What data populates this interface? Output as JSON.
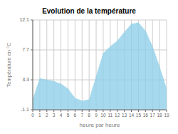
{
  "chart_data": {
    "type": "area",
    "title": "Evolution de la température",
    "x_label": "heure par heure",
    "y_label": "Température en °C",
    "x": [
      0,
      1,
      2,
      3,
      4,
      5,
      6,
      7,
      8,
      9,
      10,
      11,
      12,
      13,
      14,
      15,
      16,
      17,
      18,
      19
    ],
    "values": [
      0.4,
      3.5,
      3.3,
      3.1,
      2.7,
      2.0,
      0.6,
      0.2,
      0.4,
      3.8,
      7.2,
      8.2,
      9.0,
      10.3,
      11.5,
      11.7,
      10.5,
      8.2,
      5.2,
      2.0
    ],
    "color": "#90d0e8",
    "line_style": "dotted",
    "xlim": [
      0,
      19
    ],
    "ylim": [
      -1.1,
      12.1
    ],
    "xticks": [
      0,
      1,
      2,
      3,
      4,
      5,
      6,
      7,
      8,
      9,
      10,
      11,
      12,
      13,
      14,
      15,
      16,
      17,
      18,
      19
    ],
    "yticks": [
      -1.1,
      3.3,
      7.7,
      12.1
    ],
    "grid": true
  }
}
